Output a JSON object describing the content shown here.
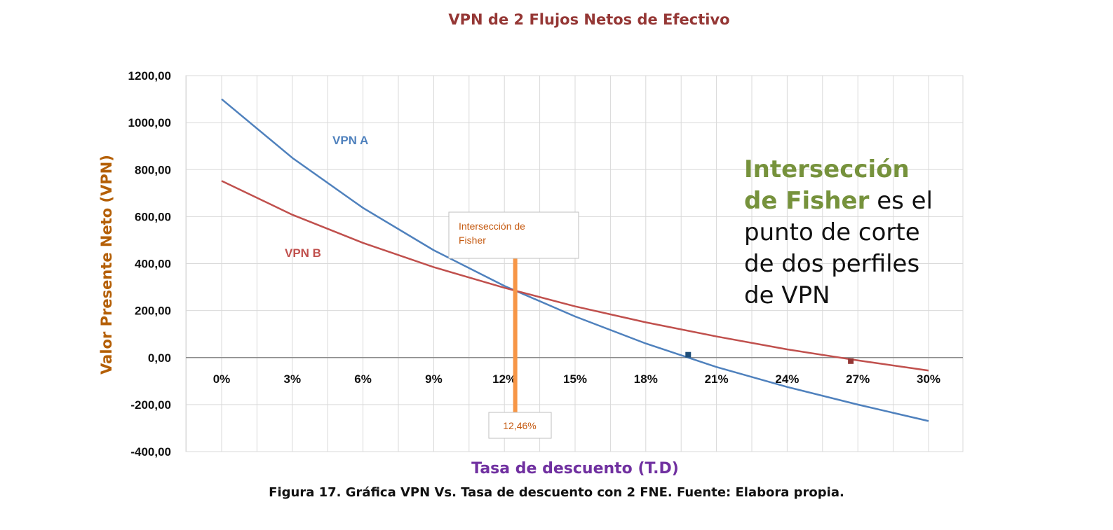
{
  "chart_data": {
    "type": "line",
    "title": "VPN de 2 Flujos Netos de Efectivo",
    "xlabel": "Tasa de descuento (T.D)",
    "ylabel": "Valor Presente Neto (VPN)",
    "categories": [
      "0%",
      "3%",
      "6%",
      "9%",
      "12%",
      "15%",
      "18%",
      "21%",
      "24%",
      "27%",
      "30%"
    ],
    "x": [
      0,
      3,
      6,
      9,
      12,
      15,
      18,
      21,
      24,
      27,
      30
    ],
    "ylim": [
      -400,
      1200
    ],
    "yticks": [
      -400,
      -200,
      0,
      200,
      400,
      600,
      800,
      1000,
      1200
    ],
    "ytick_labels": [
      "-400,00",
      "-200,00",
      "0,00",
      "200,00",
      "400,00",
      "600,00",
      "800,00",
      "1000,00",
      "1200,00"
    ],
    "grid": true,
    "series": [
      {
        "name": "VPN A",
        "color": "#4f81bd",
        "values": [
          1100,
          850,
          637,
          457,
          305,
          175,
          60,
          -40,
          -125,
          -200,
          -270
        ]
      },
      {
        "name": "VPN B",
        "color": "#c0504d",
        "values": [
          752,
          608,
          488,
          385,
          297,
          218,
          150,
          90,
          35,
          -12,
          -55
        ]
      }
    ],
    "markers": [
      {
        "x": 19.8,
        "y": 12,
        "color": "#1f4e79"
      },
      {
        "x": 26.7,
        "y": -15,
        "color": "#943634"
      }
    ],
    "annotations": {
      "fisher_label": [
        "Intersección de",
        "Fisher"
      ],
      "fisher_x": 12.46,
      "fisher_value_label": "12,46%",
      "fisher_color": "#f79646"
    }
  },
  "note": {
    "highlight_1": "Intersección",
    "highlight_2": "de Fisher",
    "text_1": " es el",
    "text_2": "punto de corte",
    "text_3": "de dos perfiles",
    "text_4": "de VPN"
  },
  "caption": "Figura 17. Gráfica VPN Vs. Tasa de descuento con 2 FNE. Fuente: Elabora propia."
}
